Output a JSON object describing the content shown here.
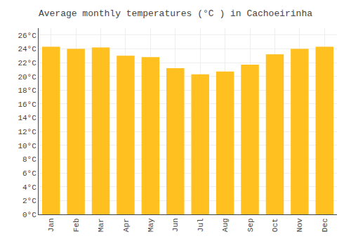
{
  "chart_data": {
    "type": "bar",
    "title": "Average monthly temperatures (°C ) in Cachoeirinha",
    "categories": [
      "Jan",
      "Feb",
      "Mar",
      "Apr",
      "May",
      "Jun",
      "Jul",
      "Aug",
      "Sep",
      "Oct",
      "Nov",
      "Dec"
    ],
    "values": [
      24.3,
      24.0,
      24.2,
      23.0,
      22.8,
      21.2,
      20.3,
      20.7,
      21.7,
      23.2,
      24.0,
      24.3
    ],
    "color": "#FFC020",
    "ylim": [
      0,
      27
    ],
    "yticks": [
      {
        "value": 0,
        "label": "0°C"
      },
      {
        "value": 2,
        "label": "2°C"
      },
      {
        "value": 4,
        "label": "4°C"
      },
      {
        "value": 6,
        "label": "6°C"
      },
      {
        "value": 8,
        "label": "8°C"
      },
      {
        "value": 10,
        "label": "10°C"
      },
      {
        "value": 12,
        "label": "12°C"
      },
      {
        "value": 14,
        "label": "14°C"
      },
      {
        "value": 16,
        "label": "16°C"
      },
      {
        "value": 18,
        "label": "18°C"
      },
      {
        "value": 20,
        "label": "20°C"
      },
      {
        "value": 22,
        "label": "22°C"
      },
      {
        "value": 24,
        "label": "24°C"
      },
      {
        "value": 26,
        "label": "26°C"
      }
    ],
    "grid": true
  }
}
